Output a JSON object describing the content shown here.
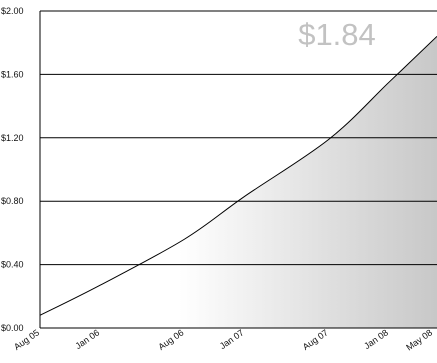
{
  "chart_data": {
    "type": "area",
    "title": "",
    "xlabel": "",
    "ylabel": "",
    "callout_label": "$1.84",
    "x_ticks": [
      "Aug 05",
      "Jan 06",
      "Aug 06",
      "Jan 07",
      "Aug 07",
      "Jan 08",
      "May 08"
    ],
    "y_ticks": [
      "$0.00",
      "$0.40",
      "$0.80",
      "$1.20",
      "$1.60",
      "$2.00"
    ],
    "ylim": [
      0,
      2.0
    ],
    "xlim": [
      "Aug 05",
      "May 08"
    ],
    "grid": "horizontal",
    "series": [
      {
        "x": [
          "Aug 05",
          "Jan 06",
          "Aug 06",
          "Jan 07",
          "Aug 07",
          "Jan 08",
          "May 08"
        ],
        "values": [
          0.08,
          0.27,
          0.56,
          0.83,
          1.19,
          1.55,
          1.84
        ]
      }
    ],
    "colors": {
      "fill_start": "#ffffff",
      "fill_end": "#c8c8c8",
      "line": "#000000",
      "grid": "#000000",
      "callout": "#c2c2c2"
    }
  }
}
